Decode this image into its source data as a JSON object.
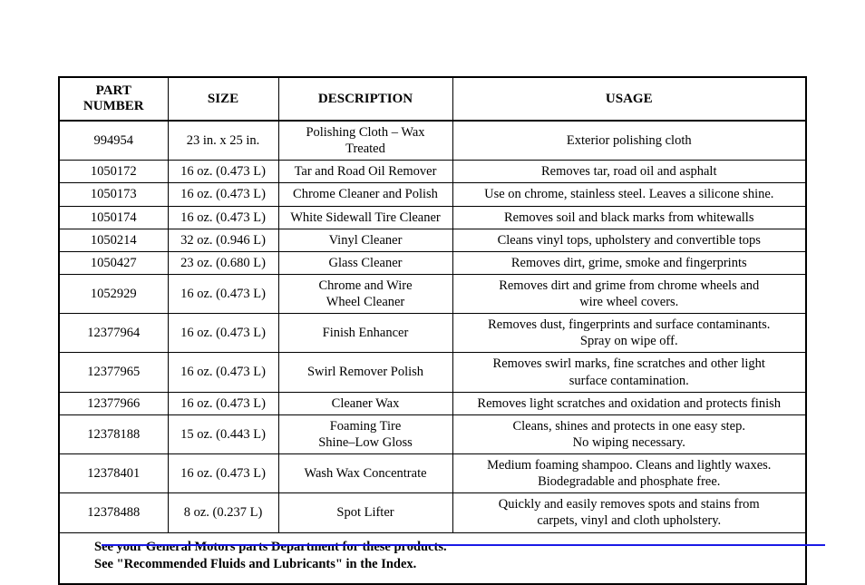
{
  "table": {
    "headers": [
      "PART NUMBER",
      "SIZE",
      "DESCRIPTION",
      "USAGE"
    ],
    "rows": [
      {
        "part": "994954",
        "size": "23 in. x 25 in.",
        "desc": "Polishing Cloth – Wax Treated",
        "usage": "Exterior polishing cloth"
      },
      {
        "part": "1050172",
        "size": "16 oz. (0.473 L)",
        "desc": "Tar and Road Oil Remover",
        "usage": "Removes tar, road oil and asphalt"
      },
      {
        "part": "1050173",
        "size": "16 oz. (0.473 L)",
        "desc": "Chrome Cleaner and Polish",
        "usage": "Use on chrome, stainless steel. Leaves a silicone shine."
      },
      {
        "part": "1050174",
        "size": "16 oz. (0.473 L)",
        "desc": "White Sidewall Tire Cleaner",
        "usage": "Removes soil and black marks from whitewalls"
      },
      {
        "part": "1050214",
        "size": "32 oz. (0.946 L)",
        "desc": "Vinyl Cleaner",
        "usage": "Cleans vinyl tops, upholstery and convertible tops"
      },
      {
        "part": "1050427",
        "size": "23 oz. (0.680 L)",
        "desc": "Glass Cleaner",
        "usage": "Removes dirt, grime, smoke and fingerprints"
      },
      {
        "part": "1052929",
        "size": "16 oz. (0.473 L)",
        "desc": "Chrome and Wire\nWheel Cleaner",
        "usage": "Removes dirt and grime from chrome wheels and\nwire wheel covers."
      },
      {
        "part": "12377964",
        "size": "16 oz. (0.473 L)",
        "desc": "Finish Enhancer",
        "usage": "Removes dust, fingerprints and surface contaminants.\nSpray on wipe off."
      },
      {
        "part": "12377965",
        "size": "16 oz. (0.473 L)",
        "desc": "Swirl Remover Polish",
        "usage": "Removes swirl marks, fine scratches and other light\nsurface contamination."
      },
      {
        "part": "12377966",
        "size": "16 oz. (0.473 L)",
        "desc": "Cleaner Wax",
        "usage": "Removes light scratches and oxidation and protects finish"
      },
      {
        "part": "12378188",
        "size": "15 oz. (0.443 L)",
        "desc": "Foaming Tire\nShine–Low Gloss",
        "usage": "Cleans, shines and protects in one easy step.\nNo wiping necessary."
      },
      {
        "part": "12378401",
        "size": "16 oz. (0.473 L)",
        "desc": "Wash Wax Concentrate",
        "usage": "Medium foaming shampoo. Cleans and lightly waxes.\nBiodegradable and phosphate free."
      },
      {
        "part": "12378488",
        "size": "8 oz. (0.237 L)",
        "desc": "Spot Lifter",
        "usage": "Quickly and easily removes spots and stains from\ncarpets, vinyl and cloth upholstery."
      }
    ],
    "footer_line1": "See your General Motors parts Department for these products.",
    "footer_line2": "See \"Recommended Fluids and Lubricants\" in the Index."
  },
  "colors": {
    "border": "#000000",
    "text": "#000000",
    "background": "#ffffff",
    "hr_blue": "#1a1ae6"
  }
}
